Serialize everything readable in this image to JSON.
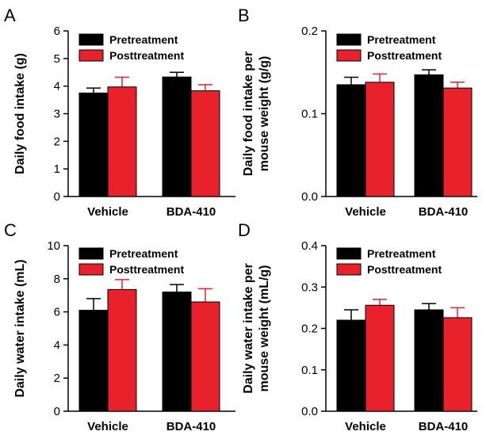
{
  "chart_data": [
    {
      "panel": "A",
      "type": "bar",
      "categories": [
        "Vehicle",
        "BDA-410"
      ],
      "series": [
        {
          "name": "Pretreatment",
          "values": [
            3.75,
            4.33
          ],
          "errors": [
            0.18,
            0.17
          ]
        },
        {
          "name": "Posttreatment",
          "values": [
            3.97,
            3.83
          ],
          "errors": [
            0.35,
            0.22
          ]
        }
      ],
      "ylabel": [
        "Daily food intake (g)"
      ],
      "ylim": [
        0,
        6
      ],
      "yticks": [
        "0",
        "1",
        "2",
        "3",
        "4",
        "5",
        "6"
      ],
      "legend": "top-left",
      "colors": {
        "Pretreatment": "#000000",
        "Posttreatment": "#e8212b"
      }
    },
    {
      "panel": "B",
      "type": "bar",
      "categories": [
        "Vehicle",
        "BDA-410"
      ],
      "series": [
        {
          "name": "Pretreatment",
          "values": [
            0.135,
            0.147
          ],
          "errors": [
            0.009,
            0.006
          ]
        },
        {
          "name": "Posttreatment",
          "values": [
            0.138,
            0.131
          ],
          "errors": [
            0.01,
            0.007
          ]
        }
      ],
      "ylabel": [
        "Daily food intake per",
        "mouse weight (g/g)"
      ],
      "ylim": [
        0,
        0.2
      ],
      "yticks": [
        "0.0",
        "0.1",
        "0.2"
      ],
      "legend": "top-left",
      "colors": {
        "Pretreatment": "#000000",
        "Posttreatment": "#e8212b"
      }
    },
    {
      "panel": "C",
      "type": "bar",
      "categories": [
        "Vehicle",
        "BDA-410"
      ],
      "series": [
        {
          "name": "Pretreatment",
          "values": [
            6.1,
            7.2
          ],
          "errors": [
            0.7,
            0.45
          ]
        },
        {
          "name": "Posttreatment",
          "values": [
            7.35,
            6.6
          ],
          "errors": [
            0.6,
            0.8
          ]
        }
      ],
      "ylabel": [
        "Daily water intake (mL)"
      ],
      "ylim": [
        0,
        10
      ],
      "yticks": [
        "0",
        "2",
        "4",
        "6",
        "8",
        "10"
      ],
      "legend": "top-left",
      "colors": {
        "Pretreatment": "#000000",
        "Posttreatment": "#e8212b"
      }
    },
    {
      "panel": "D",
      "type": "bar",
      "categories": [
        "Vehicle",
        "BDA-410"
      ],
      "series": [
        {
          "name": "Pretreatment",
          "values": [
            0.22,
            0.245
          ],
          "errors": [
            0.025,
            0.015
          ]
        },
        {
          "name": "Posttreatment",
          "values": [
            0.256,
            0.226
          ],
          "errors": [
            0.014,
            0.024
          ]
        }
      ],
      "ylabel": [
        "Daily water intake per",
        "mouse weight (mL/g)"
      ],
      "ylim": [
        0,
        0.4
      ],
      "yticks": [
        "0.0",
        "0.1",
        "0.2",
        "0.3",
        "0.4"
      ],
      "legend": "top-left",
      "colors": {
        "Pretreatment": "#000000",
        "Posttreatment": "#e8212b"
      }
    }
  ]
}
